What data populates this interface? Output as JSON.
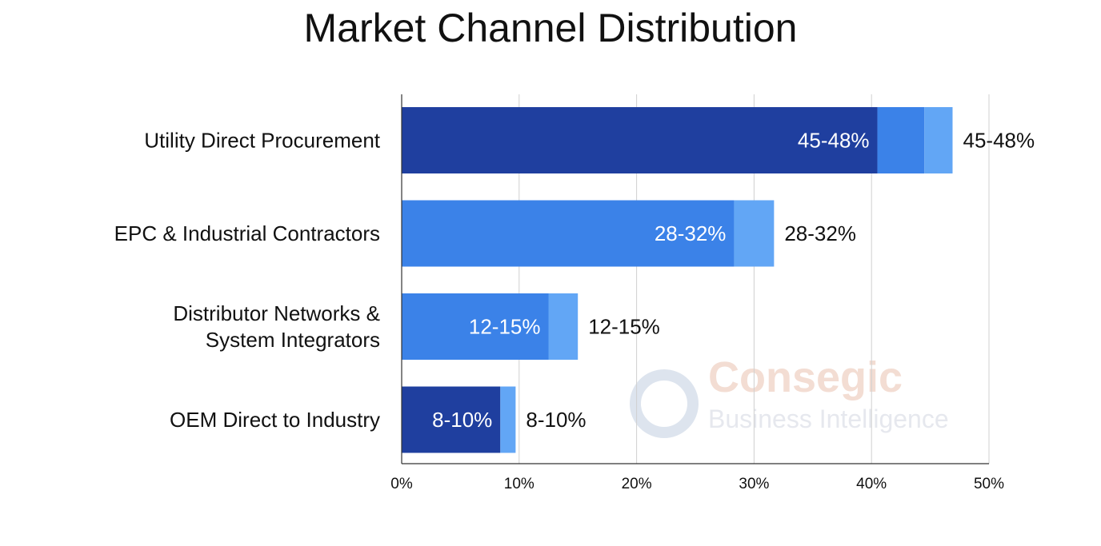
{
  "chart_data": {
    "type": "bar",
    "orientation": "horizontal",
    "stacked": true,
    "title": "Market Channel Distribution",
    "xlabel": "",
    "ylabel": "",
    "xlim": [
      0,
      50
    ],
    "x_ticks": [
      "0%",
      "10%",
      "20%",
      "30%",
      "40%",
      "50%"
    ],
    "grid": true,
    "categories": [
      "Utility Direct Procurement",
      "EPC & Industrial Contractors",
      "Distributor Networks & System Integrators",
      "OEM Direct to Industry"
    ],
    "category_lines": [
      [
        "Utility Direct Procurement"
      ],
      [
        "EPC & Industrial Contractors"
      ],
      [
        "Distributor Networks &",
        "System Integrators"
      ],
      [
        "OEM Direct to Industry"
      ]
    ],
    "bars": [
      {
        "label": "45-48%",
        "segments": [
          {
            "end": 40.5,
            "color": "#1f3f9f"
          },
          {
            "end": 44.5,
            "color": "#3b82e8"
          },
          {
            "end": 46.9,
            "color": "#62a6f5"
          }
        ]
      },
      {
        "label": "28-32%",
        "segments": [
          {
            "end": 28.3,
            "color": "#3b82e8"
          },
          {
            "end": 31.7,
            "color": "#62a6f5"
          }
        ]
      },
      {
        "label": "12-15%",
        "segments": [
          {
            "end": 12.5,
            "color": "#3b82e8"
          },
          {
            "end": 15.0,
            "color": "#62a6f5"
          }
        ]
      },
      {
        "label": "8-10%",
        "segments": [
          {
            "end": 8.4,
            "color": "#1f3f9f"
          },
          {
            "end": 9.7,
            "color": "#62a6f5"
          }
        ]
      }
    ]
  },
  "watermark": {
    "line1": "Consegic",
    "line2": "Business Intelligence"
  }
}
